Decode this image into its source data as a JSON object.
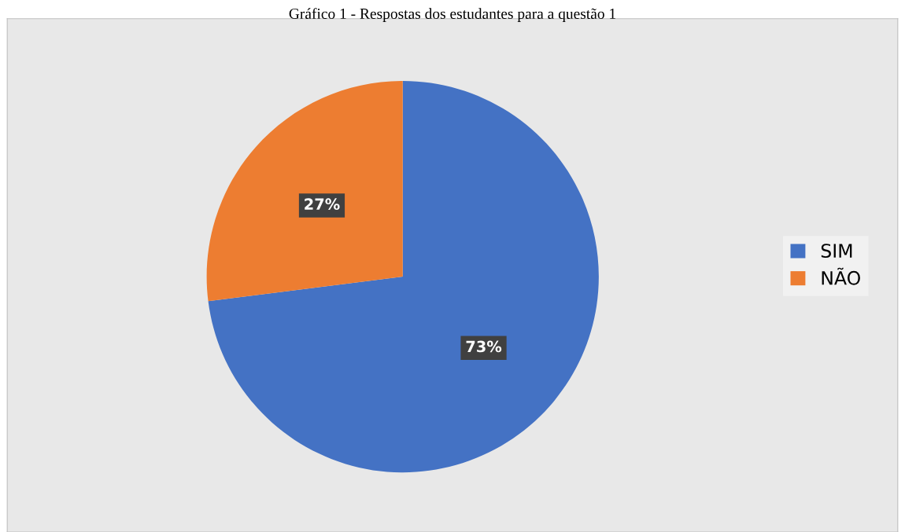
{
  "chart_data": {
    "type": "pie",
    "title": "Gráfico 1 - Respostas dos estudantes para a questão 1",
    "categories": [
      "SIM",
      "NÃO"
    ],
    "values": [
      73,
      27
    ],
    "colors": [
      "#4472c4",
      "#ed7d31"
    ],
    "value_labels": [
      "73%",
      "27%"
    ],
    "legend": "right"
  }
}
